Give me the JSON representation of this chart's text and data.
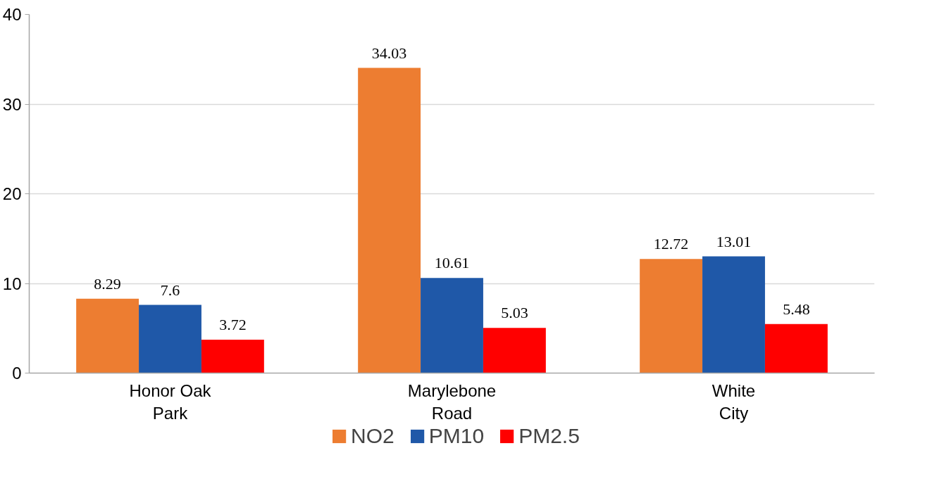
{
  "chart_data": {
    "type": "bar",
    "categories": [
      "Honor Oak Park",
      "Marylebone Road",
      "White City"
    ],
    "series": [
      {
        "name": "NO2",
        "color": "#ed7d31",
        "values": [
          8.29,
          34.03,
          12.72
        ]
      },
      {
        "name": "PM10",
        "color": "#1f58a8",
        "values": [
          7.6,
          10.61,
          13.01
        ]
      },
      {
        "name": "PM2.5",
        "color": "#ff0000",
        "values": [
          3.72,
          5.03,
          5.48
        ]
      }
    ],
    "ylim": [
      0,
      40
    ],
    "yticks": [
      0,
      10,
      20,
      30,
      40
    ],
    "grid": "y",
    "legend": "bottom",
    "data_labels": true
  }
}
